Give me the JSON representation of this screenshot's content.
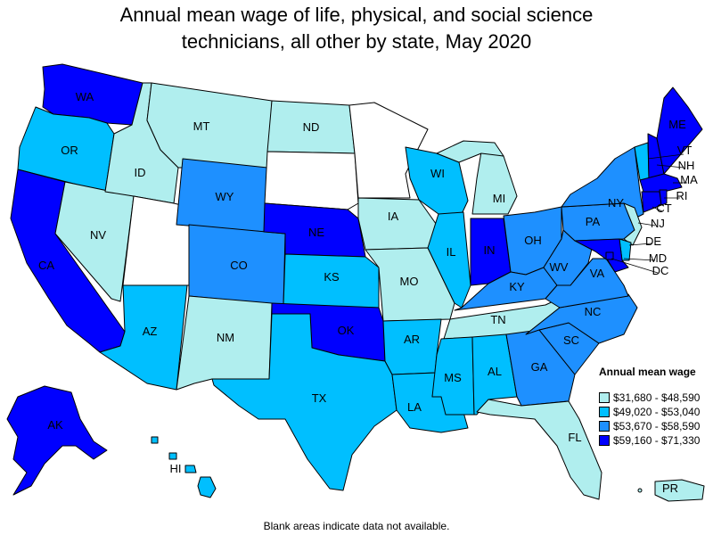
{
  "title_line1": "Annual mean wage of life, physical, and social science",
  "title_line2": "technicians, all other by state, May 2020",
  "legend": {
    "title": "Annual mean wage",
    "bins": [
      {
        "label": "$31,680 - $48,590",
        "color": "#b0eeee"
      },
      {
        "label": "$49,020 - $53,040",
        "color": "#00bfff"
      },
      {
        "label": "$53,670 - $58,590",
        "color": "#1e90ff"
      },
      {
        "label": "$59,160 - $71,330",
        "color": "#0000ff"
      }
    ]
  },
  "no_data_color": "#ffffff",
  "footnote": "Blank areas indicate data not available.",
  "states": {
    "WA": 3,
    "OR": 1,
    "CA": 3,
    "NV": 0,
    "ID": 0,
    "MT": 0,
    "WY": 2,
    "UT": null,
    "AZ": 1,
    "CO": 2,
    "NM": 0,
    "ND": 0,
    "SD": null,
    "NE": 3,
    "KS": 1,
    "OK": 3,
    "TX": 1,
    "MN": null,
    "IA": 0,
    "MO": 0,
    "AR": 1,
    "LA": 1,
    "WI": 1,
    "IL": 1,
    "MI": 0,
    "IN": 3,
    "OH": 2,
    "KY": 2,
    "TN": 0,
    "MS": 1,
    "AL": 1,
    "GA": 2,
    "FL": 0,
    "SC": 2,
    "NC": 2,
    "VA": 2,
    "WV": 2,
    "PA": 2,
    "NY": 2,
    "ME": 3,
    "VT": 1,
    "NH": 3,
    "MA": 3,
    "RI": 3,
    "CT": 3,
    "NJ": 0,
    "DE": 1,
    "MD": 3,
    "DC": 3,
    "AK": 3,
    "HI": 1,
    "PR": 0
  },
  "state_labels": [
    "WA",
    "OR",
    "CA",
    "NV",
    "ID",
    "MT",
    "WY",
    "AZ",
    "CO",
    "NM",
    "ND",
    "NE",
    "KS",
    "OK",
    "TX",
    "IA",
    "MO",
    "AR",
    "LA",
    "WI",
    "IL",
    "MI",
    "IN",
    "OH",
    "KY",
    "TN",
    "MS",
    "AL",
    "GA",
    "FL",
    "SC",
    "NC",
    "VA",
    "WV",
    "PA",
    "NY",
    "ME",
    "VT",
    "NH",
    "MA",
    "RI",
    "CT",
    "NJ",
    "DE",
    "MD",
    "DC",
    "AK",
    "HI",
    "PR"
  ]
}
